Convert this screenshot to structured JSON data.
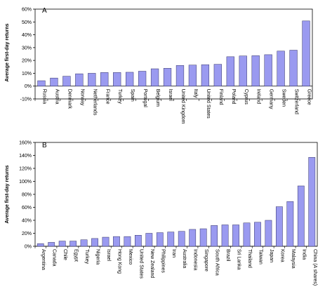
{
  "chart_data": [
    {
      "type": "bar",
      "panel_label": "A",
      "ylabel": "Average first-day returns",
      "ylim": [
        -10,
        60
      ],
      "yticks": [
        "-10%",
        "0%",
        "10%",
        "20%",
        "30%",
        "40%",
        "50%",
        "60%"
      ],
      "yticks_values": [
        -10,
        0,
        10,
        20,
        30,
        40,
        50,
        60
      ],
      "categories": [
        "Russia",
        "Austria",
        "Denmark",
        "Norway",
        "Netherlands",
        "France",
        "Turkey",
        "Spain",
        "Portugal",
        "Belgium",
        "Israel",
        "United Kingdom",
        "Italy",
        "United States",
        "Finland",
        "Poland",
        "Cyprus",
        "Ireland",
        "Germany",
        "Sweden",
        "Switzerland",
        "Greece"
      ],
      "values": [
        4.2,
        6.3,
        7.7,
        9.6,
        10.0,
        10.6,
        10.6,
        10.8,
        11.6,
        13.5,
        13.9,
        16.1,
        16.4,
        16.7,
        17.0,
        22.9,
        23.5,
        23.7,
        24.5,
        27.3,
        28.0,
        50.8
      ],
      "bar_color": "#9a9af0",
      "grid": false
    },
    {
      "type": "bar",
      "panel_label": "B",
      "ylabel": "Average first-day returns",
      "ylim": [
        0,
        160
      ],
      "yticks": [
        "0%",
        "20%",
        "40%",
        "60%",
        "80%",
        "100%",
        "120%",
        "140%",
        "160%"
      ],
      "yticks_values": [
        0,
        20,
        40,
        60,
        80,
        100,
        120,
        140,
        160
      ],
      "categories": [
        "Argentina",
        "Canada",
        "Chile",
        "Egypt",
        "Turkey",
        "Nigeria",
        "Israel",
        "Hong Kong",
        "Mexico",
        "United States",
        "New Zealand",
        "Philippines",
        "Iran",
        "Australia",
        "Indonesia",
        "Singapore",
        "South Africa",
        "Brazil",
        "Sri Lanka",
        "Thailand",
        "Taiwan",
        "Japan",
        "Korea",
        "Malaysia",
        "India",
        "China (A shares)"
      ],
      "values": [
        4,
        6,
        8,
        8,
        10,
        12,
        14,
        15,
        15,
        17,
        20,
        21,
        22,
        23,
        26,
        27,
        32,
        33,
        33,
        36,
        37,
        40,
        61,
        69,
        93,
        137
      ],
      "bar_color": "#9a9af0",
      "grid": false
    }
  ]
}
